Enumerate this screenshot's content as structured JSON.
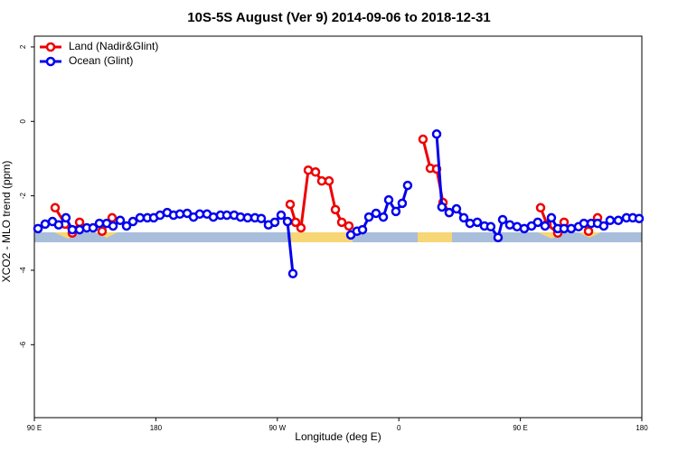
{
  "chart_data": {
    "type": "line",
    "title": "10S-5S August (Ver 9)   2014-09-06 to 2018-12-31",
    "x_label": "Longitude (deg E)",
    "y_label": "XCO2 - MLO trend (ppm)",
    "xlim": [
      90,
      540
    ],
    "xticks": [
      {
        "value": 90,
        "label": "90 E"
      },
      {
        "value": 180,
        "label": "180"
      },
      {
        "value": 270,
        "label": "90 W"
      },
      {
        "value": 360,
        "label": "0"
      },
      {
        "value": 450,
        "label": "90 E"
      },
      {
        "value": 540,
        "label": "180"
      }
    ],
    "ylim": [
      -7.96,
      2.29
    ],
    "yticks": [
      2,
      0,
      -2,
      -4,
      -6
    ],
    "legend": "top-left",
    "series": [
      {
        "name": "Land (Nadir&Glint)",
        "color": "#ee0000",
        "x": [
          105.4,
          112.8,
          118.1,
          123.5,
          null,
          140.2,
          147.6,
          null,
          279.5,
          283.5,
          287.5,
          292.9,
          298.3,
          302.9,
          308.3,
          313.0,
          317.7,
          323.0,
          null,
          377.9,
          383.3,
          388.0,
          392.7,
          397.3,
          null,
          465.0,
          469.7,
          477.7,
          482.4,
          null,
          500.5,
          507.2
        ],
        "values": [
          -2.32,
          -2.76,
          -3.0,
          -2.71,
          null,
          -2.95,
          -2.59,
          null,
          -2.23,
          -2.71,
          -2.86,
          -1.31,
          -1.36,
          -1.6,
          -1.6,
          -2.37,
          -2.71,
          -2.81,
          null,
          -0.48,
          -1.26,
          -1.28,
          -2.18,
          -2.45,
          null,
          -2.32,
          -2.76,
          -3.0,
          -2.71,
          null,
          -2.95,
          -2.59
        ]
      },
      {
        "name": "Ocean (Glint)",
        "color": "#0000ee",
        "x": [
          92.7,
          98.0,
          103.4,
          108.0,
          113.4,
          118.1,
          123.5,
          128.8,
          133.5,
          138.2,
          143.6,
          148.3,
          153.6,
          158.3,
          163.0,
          168.3,
          173.7,
          178.4,
          183.1,
          188.4,
          193.1,
          197.8,
          203.2,
          207.9,
          212.5,
          217.9,
          222.6,
          227.9,
          232.6,
          238.0,
          242.7,
          248.0,
          253.4,
          258.1,
          263.4,
          268.1,
          272.8,
          277.5,
          281.5,
          null,
          324.4,
          329.0,
          333.1,
          337.8,
          343.1,
          348.5,
          352.5,
          357.8,
          362.5,
          366.5,
          null,
          388.0,
          391.9,
          397.3,
          402.7,
          408.1,
          412.7,
          418.1,
          423.4,
          428.1,
          433.5,
          436.9,
          442.2,
          447.6,
          452.9,
          458.3,
          462.9,
          468.3,
          473.0,
          477.7,
          482.4,
          487.7,
          493.1,
          497.1,
          502.5,
          507.2,
          511.8,
          516.5,
          522.6,
          528.6,
          533.3,
          538.0
        ],
        "values": [
          -2.88,
          -2.76,
          -2.69,
          -2.78,
          -2.59,
          -2.91,
          -2.91,
          -2.86,
          -2.86,
          -2.74,
          -2.74,
          -2.81,
          -2.66,
          -2.81,
          -2.69,
          -2.59,
          -2.59,
          -2.59,
          -2.52,
          -2.45,
          -2.52,
          -2.49,
          -2.47,
          -2.57,
          -2.49,
          -2.49,
          -2.57,
          -2.52,
          -2.52,
          -2.52,
          -2.57,
          -2.59,
          -2.59,
          -2.61,
          -2.78,
          -2.71,
          -2.52,
          -2.69,
          -4.09,
          null,
          -3.05,
          -2.95,
          -2.91,
          -2.57,
          -2.47,
          -2.57,
          -2.11,
          -2.42,
          -2.2,
          -1.72,
          null,
          -0.34,
          -2.3,
          -2.45,
          -2.35,
          -2.59,
          -2.74,
          -2.71,
          -2.81,
          -2.83,
          -3.12,
          -2.64,
          -2.78,
          -2.83,
          -2.88,
          -2.81,
          -2.71,
          -2.81,
          -2.59,
          -2.88,
          -2.88,
          -2.88,
          -2.83,
          -2.74,
          -2.74,
          -2.74,
          -2.81,
          -2.66,
          -2.66,
          -2.59,
          -2.59,
          -2.61
        ]
      }
    ]
  }
}
